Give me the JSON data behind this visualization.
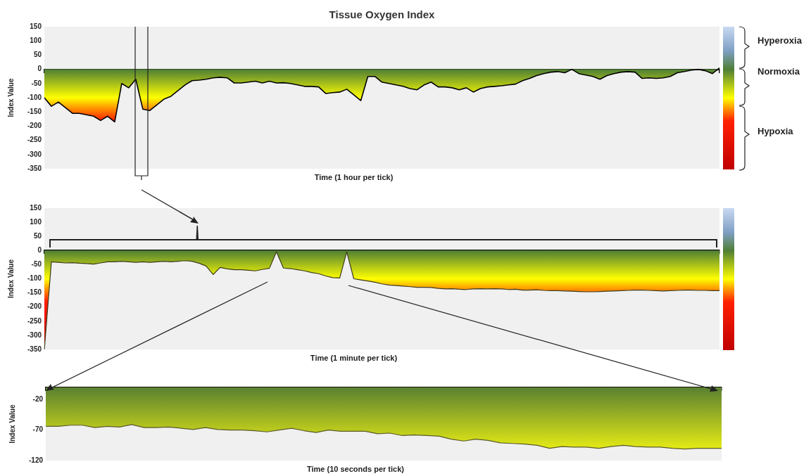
{
  "chart_data": [
    {
      "type": "area",
      "title": "Tissue Oxygen Index",
      "xlabel": "Time (1 hour per tick)",
      "ylabel": "Index Value",
      "categories": [
        null,
        null,
        null,
        null,
        null,
        null,
        null,
        null,
        null,
        null,
        null,
        null,
        null,
        null,
        null,
        null,
        null,
        null,
        null,
        null,
        null,
        null,
        null,
        null,
        null,
        null,
        null,
        null,
        null,
        null,
        null,
        null,
        null,
        null,
        null,
        null,
        null,
        null,
        null,
        null,
        null,
        null,
        null,
        null,
        null,
        null,
        null,
        null,
        null,
        null,
        null,
        null,
        null,
        null,
        null,
        null,
        null,
        null,
        null,
        null,
        null,
        null,
        null,
        null,
        null,
        null,
        null,
        null,
        null,
        null,
        null,
        null,
        null,
        null,
        null,
        null,
        null,
        null,
        null,
        null,
        null,
        null,
        null,
        null,
        null,
        null,
        null,
        null,
        null,
        null,
        null,
        null,
        null,
        null,
        null,
        null,
        null
      ],
      "series": [
        {
          "color": "#000000",
          "values": [
            -100,
            -130,
            -115,
            -135,
            -155,
            -155,
            -160,
            -165,
            -180,
            -165,
            -185,
            -50,
            -65,
            -35,
            -140,
            -145,
            -125,
            -105,
            -95,
            -75,
            -55,
            -40,
            -38,
            -35,
            -30,
            -28,
            -30,
            -48,
            -48,
            -45,
            -42,
            -48,
            -42,
            -48,
            -47,
            -50,
            -55,
            -60,
            -60,
            -62,
            -85,
            -82,
            -80,
            -70,
            -90,
            -110,
            -25,
            -25,
            -45,
            -50,
            -55,
            -60,
            -68,
            -72,
            -55,
            -45,
            -62,
            -62,
            -65,
            -72,
            -65,
            -80,
            -68,
            -62,
            -60,
            -58,
            -55,
            -52,
            -40,
            -32,
            -22,
            -15,
            -10,
            -8,
            -12,
            0,
            -15,
            -20,
            -25,
            -35,
            -22,
            -15,
            -10,
            -8,
            -10,
            -32,
            -30,
            -32,
            -30,
            -25,
            -12,
            -8,
            -3,
            0,
            -5,
            -15,
            5
          ]
        }
      ],
      "ylim": [
        -350,
        150
      ],
      "yticks": [
        -350,
        -300,
        -250,
        -200,
        -150,
        -100,
        -50,
        0,
        50,
        100,
        150
      ],
      "annotations": [
        "Hyperoxia",
        "Normoxia",
        "Hypoxia"
      ],
      "tick_labels": "y"
    },
    {
      "type": "area",
      "xlabel": "Time (1 minute per tick)",
      "ylabel": "Index Value",
      "categories": [
        null,
        null,
        null,
        null,
        null,
        null,
        null,
        null,
        null,
        null,
        null,
        null,
        null,
        null,
        null,
        null,
        null,
        null,
        null,
        null,
        null,
        null,
        null,
        null,
        null,
        null,
        null,
        null,
        null,
        null,
        null,
        null,
        null,
        null,
        null,
        null,
        null,
        null,
        null,
        null,
        null,
        null,
        null,
        null,
        null,
        null,
        null,
        null,
        null,
        null,
        null,
        null,
        null,
        null,
        null,
        null,
        null,
        null,
        null,
        null,
        null,
        null,
        null,
        null,
        null,
        null,
        null,
        null,
        null,
        null,
        null,
        null,
        null,
        null,
        null,
        null,
        null,
        null,
        null,
        null,
        null,
        null,
        null,
        null,
        null,
        null,
        null,
        null,
        null,
        null,
        null,
        null,
        null,
        null,
        null,
        null,
        null
      ],
      "series": [
        {
          "color": "#3d3a1a",
          "values": [
            -350,
            -40,
            -42,
            -44,
            -43,
            -45,
            -46,
            -48,
            -44,
            -40,
            -40,
            -38,
            -40,
            -42,
            -40,
            -42,
            -40,
            -38,
            -40,
            -38,
            -36,
            -38,
            -45,
            -55,
            -85,
            -60,
            -65,
            -68,
            -68,
            -70,
            -72,
            -67,
            -63,
            -5,
            -62,
            -64,
            -68,
            -72,
            -78,
            -82,
            -90,
            -96,
            -97,
            -5,
            -100,
            -104,
            -108,
            -112,
            -118,
            -122,
            -124,
            -126,
            -128,
            -130,
            -130,
            -131,
            -134,
            -136,
            -135,
            -137,
            -138,
            -136,
            -135,
            -136,
            -135,
            -136,
            -138,
            -137,
            -140,
            -140,
            -139,
            -141,
            -142,
            -142,
            -143,
            -144,
            -145,
            -146,
            -146,
            -145,
            -144,
            -143,
            -142,
            -141,
            -140,
            -140,
            -141,
            -142,
            -143,
            -142,
            -141,
            -140,
            -140,
            -141,
            -141,
            -142,
            -142
          ]
        }
      ],
      "ylim": [
        -350,
        150
      ],
      "yticks": [
        -350,
        -300,
        -250,
        -200,
        -150,
        -100,
        -50,
        0,
        50,
        100,
        150
      ],
      "tick_labels": "y"
    },
    {
      "type": "area",
      "xlabel": "Time (10 seconds per tick)",
      "ylabel": "Index Value",
      "categories": [
        null,
        null,
        null,
        null,
        null,
        null,
        null,
        null,
        null,
        null,
        null,
        null,
        null,
        null,
        null,
        null,
        null,
        null,
        null,
        null,
        null,
        null,
        null,
        null,
        null,
        null,
        null,
        null,
        null,
        null,
        null,
        null,
        null,
        null,
        null,
        null,
        null,
        null,
        null,
        null,
        null,
        null,
        null,
        null,
        null,
        null,
        null,
        null,
        null,
        null,
        null,
        null,
        null,
        null,
        null,
        null
      ],
      "series": [
        {
          "color": "#5a5a2a",
          "values": [
            -64,
            -64,
            -62,
            -62,
            -66,
            -64,
            -65,
            -61,
            -66,
            -66,
            -65,
            -67,
            -69,
            -66,
            -69,
            -70,
            -70,
            -71,
            -73,
            -70,
            -67,
            -71,
            -74,
            -70,
            -72,
            -72,
            -72,
            -76,
            -75,
            -79,
            -78,
            -79,
            -80,
            -85,
            -88,
            -85,
            -87,
            -91,
            -92,
            -93,
            -95,
            -100,
            -97,
            -98,
            -98,
            -100,
            -97,
            -95,
            -97,
            -98,
            -98,
            -100,
            -101,
            -100,
            -100,
            -100
          ]
        }
      ],
      "ylim": [
        -120,
        0
      ],
      "yticks": [
        -20,
        -70,
        -120
      ],
      "tick_labels": "y"
    }
  ]
}
